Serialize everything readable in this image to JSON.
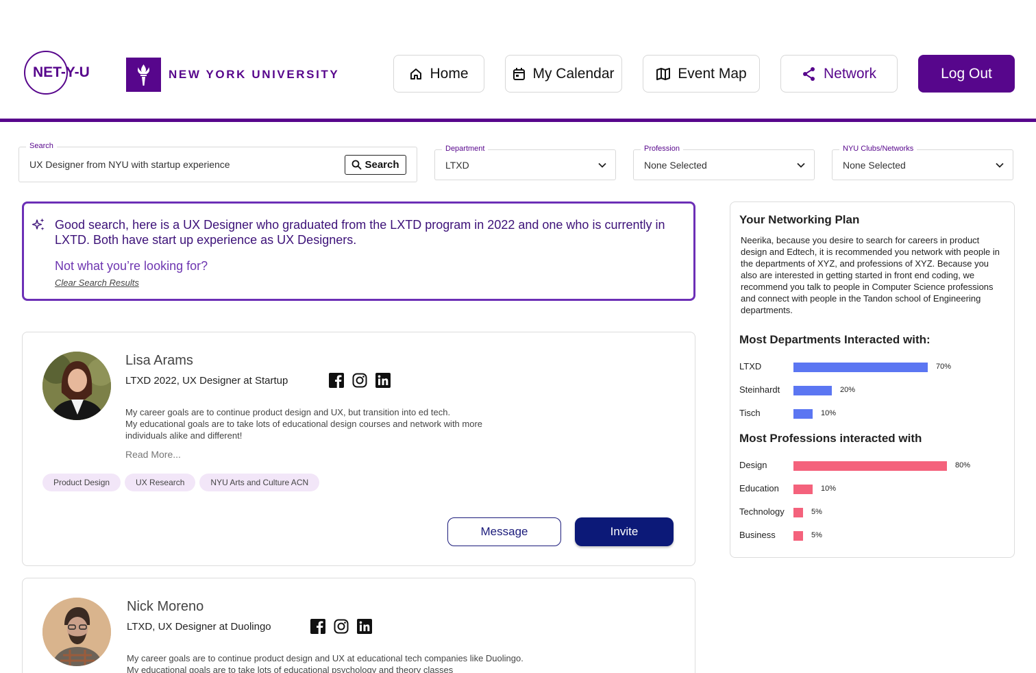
{
  "brand": {
    "logo_text": "NET-Y-U",
    "university": "NEW YORK UNIVERSITY"
  },
  "nav": {
    "home": "Home",
    "calendar": "My Calendar",
    "event_map": "Event Map",
    "network": "Network",
    "logout": "Log Out"
  },
  "filters": {
    "search": {
      "label": "Search",
      "value": "UX Designer from NYU with startup experience",
      "button": "Search"
    },
    "department": {
      "label": "Department",
      "value": "LTXD"
    },
    "profession": {
      "label": "Profession",
      "value": "None Selected"
    },
    "clubs": {
      "label": "NYU Clubs/Networks",
      "value": "None Selected"
    }
  },
  "ai": {
    "message": "Good search, here is a UX Designer who graduated from the LXTD program in 2022 and one who is currently in LXTD. Both have start up experience as UX Designers.",
    "not_found": "Not what you’re looking for?",
    "clear": "Clear Search Results"
  },
  "profiles": [
    {
      "name": "Lisa Arams",
      "role": "LTXD 2022, UX Designer at Startup",
      "bio_1": "My career goals are to continue product design and UX, but transition into ed tech.",
      "bio_2": "My educational goals are to take lots of educational design courses and network with more individuals alike and different!",
      "read_more": "Read More...",
      "tags": [
        "Product Design",
        "UX Research",
        "NYU Arts and Culture ACN"
      ],
      "message": "Message",
      "invite": "Invite"
    },
    {
      "name": "Nick Moreno",
      "role": "LTXD, UX Designer at Duolingo",
      "bio_1": "My career goals are to continue product design and UX at educational tech companies like Duolingo. My educational goals are to take lots of educational psychology and theory classes"
    }
  ],
  "plan": {
    "title": "Your Networking Plan",
    "body": "Neerika, because you desire to search for careers in product design and Edtech, it is recommended you network with people in the departments of XYZ, and professions of XYZ. Because you also are interested in getting started in front end coding, we recommend you talk to people in Computer Science professions and connect with people in the Tandon school of Engineering departments.",
    "departments_title": "Most Departments Interacted with:",
    "departments": [
      {
        "label": "LTXD",
        "value": 70,
        "text": "70%"
      },
      {
        "label": "Steinhardt",
        "value": 20,
        "text": "20%"
      },
      {
        "label": "Tisch",
        "value": 10,
        "text": "10%"
      }
    ],
    "professions_title": "Most Professions interacted  with",
    "professions": [
      {
        "label": "Design",
        "value": 80,
        "text": "80%"
      },
      {
        "label": "Education",
        "value": 10,
        "text": "10%"
      },
      {
        "label": "Technology",
        "value": 5,
        "text": "5%"
      },
      {
        "label": "Business",
        "value": 5,
        "text": "5%"
      }
    ],
    "dept_color": "#5b76f2",
    "prof_color": "#f4627c"
  },
  "colors": {
    "brand_purple": "#57068c",
    "invite_navy": "#0c1978"
  },
  "icons": [
    "home-icon",
    "calendar-icon",
    "map-icon",
    "share-icon",
    "search-icon",
    "chevron-down-icon",
    "sparkle-icon",
    "facebook-icon",
    "instagram-icon",
    "linkedin-icon",
    "nyu-torch-icon"
  ]
}
